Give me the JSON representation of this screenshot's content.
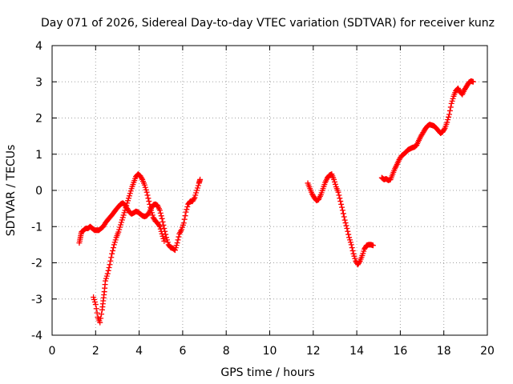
{
  "chart_data": {
    "type": "scatter",
    "title": "Day 071 of 2026, Sidereal Day-to-day VTEC variation (SDTVAR) for receiver kunz",
    "xlabel": "GPS time / hours",
    "ylabel": "SDTVAR / TECUs",
    "xlim": [
      0,
      20
    ],
    "ylim": [
      -4,
      4
    ],
    "x_ticks": [
      "0",
      "2",
      "4",
      "6",
      "8",
      "10",
      "12",
      "14",
      "16",
      "18",
      "20"
    ],
    "y_ticks": [
      "-4",
      "-3",
      "-2",
      "-1",
      "0",
      "1",
      "2",
      "3",
      "4"
    ],
    "grid": true,
    "marker": "+",
    "color": "#ff0000",
    "series": [
      {
        "points": [
          [
            1.25,
            -1.45
          ],
          [
            1.3,
            -1.3
          ],
          [
            1.35,
            -1.15
          ],
          [
            1.45,
            -1.1
          ],
          [
            1.55,
            -1.05
          ],
          [
            1.65,
            -1.05
          ],
          [
            1.75,
            -1.0
          ],
          [
            1.85,
            -1.05
          ],
          [
            1.95,
            -1.1
          ],
          [
            2.05,
            -1.1
          ],
          [
            2.15,
            -1.1
          ],
          [
            2.25,
            -1.05
          ],
          [
            2.35,
            -1.0
          ],
          [
            2.45,
            -0.9
          ],
          [
            2.55,
            -0.82
          ],
          [
            2.65,
            -0.75
          ],
          [
            2.75,
            -0.68
          ],
          [
            2.85,
            -0.6
          ],
          [
            2.95,
            -0.52
          ],
          [
            3.05,
            -0.45
          ],
          [
            3.15,
            -0.38
          ],
          [
            3.25,
            -0.35
          ],
          [
            3.35,
            -0.4
          ],
          [
            3.45,
            -0.5
          ],
          [
            3.55,
            -0.6
          ],
          [
            3.65,
            -0.65
          ],
          [
            3.75,
            -0.62
          ],
          [
            3.85,
            -0.58
          ],
          [
            3.95,
            -0.6
          ],
          [
            4.05,
            -0.65
          ],
          [
            4.15,
            -0.7
          ],
          [
            4.25,
            -0.72
          ],
          [
            4.35,
            -0.7
          ],
          [
            4.45,
            -0.62
          ],
          [
            4.55,
            -0.5
          ],
          [
            4.65,
            -0.4
          ],
          [
            4.75,
            -0.38
          ],
          [
            4.85,
            -0.42
          ],
          [
            4.95,
            -0.55
          ],
          [
            5.05,
            -0.78
          ],
          [
            5.15,
            -1.05
          ],
          [
            5.25,
            -1.3
          ],
          [
            5.35,
            -1.5
          ],
          [
            5.45,
            -1.58
          ],
          [
            5.55,
            -1.6
          ],
          [
            5.65,
            -1.65
          ],
          [
            5.75,
            -1.45
          ],
          [
            5.85,
            -1.2
          ],
          [
            5.95,
            -1.08
          ],
          [
            6.05,
            -0.9
          ],
          [
            6.15,
            -0.6
          ],
          [
            6.25,
            -0.38
          ],
          [
            6.35,
            -0.3
          ],
          [
            6.45,
            -0.3
          ],
          [
            6.55,
            -0.2
          ],
          [
            6.65,
            0.0
          ],
          [
            6.75,
            0.2
          ],
          [
            6.8,
            0.3
          ]
        ]
      },
      {
        "points": [
          [
            1.9,
            -2.95
          ],
          [
            2.0,
            -3.15
          ],
          [
            2.1,
            -3.5
          ],
          [
            2.2,
            -3.65
          ],
          [
            2.3,
            -3.3
          ],
          [
            2.35,
            -3.05
          ],
          [
            2.4,
            -2.8
          ],
          [
            2.45,
            -2.5
          ],
          [
            2.55,
            -2.3
          ],
          [
            2.65,
            -2.05
          ],
          [
            2.75,
            -1.75
          ],
          [
            2.85,
            -1.5
          ],
          [
            2.95,
            -1.3
          ],
          [
            3.05,
            -1.15
          ],
          [
            3.15,
            -0.95
          ],
          [
            3.25,
            -0.75
          ],
          [
            3.35,
            -0.55
          ],
          [
            3.45,
            -0.35
          ],
          [
            3.55,
            -0.15
          ],
          [
            3.65,
            0.05
          ],
          [
            3.75,
            0.22
          ],
          [
            3.85,
            0.38
          ],
          [
            3.95,
            0.45
          ],
          [
            4.05,
            0.4
          ],
          [
            4.15,
            0.3
          ],
          [
            4.25,
            0.15
          ],
          [
            4.35,
            -0.05
          ],
          [
            4.45,
            -0.3
          ],
          [
            4.55,
            -0.55
          ],
          [
            4.65,
            -0.75
          ],
          [
            4.75,
            -0.85
          ],
          [
            4.85,
            -0.9
          ],
          [
            4.95,
            -1.0
          ],
          [
            5.05,
            -1.2
          ],
          [
            5.15,
            -1.4
          ]
        ]
      },
      {
        "points": [
          [
            11.75,
            0.2
          ],
          [
            11.85,
            0.05
          ],
          [
            11.95,
            -0.1
          ],
          [
            12.05,
            -0.2
          ],
          [
            12.15,
            -0.28
          ],
          [
            12.25,
            -0.25
          ],
          [
            12.35,
            -0.12
          ],
          [
            12.45,
            0.05
          ],
          [
            12.55,
            0.22
          ],
          [
            12.65,
            0.35
          ],
          [
            12.75,
            0.42
          ],
          [
            12.85,
            0.45
          ],
          [
            12.95,
            0.3
          ],
          [
            13.05,
            0.1
          ],
          [
            13.15,
            -0.05
          ],
          [
            13.25,
            -0.3
          ],
          [
            13.35,
            -0.55
          ],
          [
            13.45,
            -0.82
          ],
          [
            13.55,
            -1.05
          ],
          [
            13.65,
            -1.3
          ],
          [
            13.75,
            -1.5
          ],
          [
            13.85,
            -1.75
          ],
          [
            13.95,
            -1.95
          ],
          [
            14.05,
            -2.05
          ],
          [
            14.15,
            -1.95
          ],
          [
            14.25,
            -1.8
          ],
          [
            14.35,
            -1.62
          ],
          [
            14.45,
            -1.52
          ],
          [
            14.55,
            -1.5
          ],
          [
            14.65,
            -1.5
          ],
          [
            14.75,
            -1.52
          ]
        ]
      },
      {
        "points": [
          [
            15.15,
            0.35
          ],
          [
            15.25,
            0.3
          ],
          [
            15.35,
            0.32
          ],
          [
            15.45,
            0.28
          ],
          [
            15.55,
            0.3
          ],
          [
            15.65,
            0.45
          ],
          [
            15.75,
            0.6
          ],
          [
            15.85,
            0.72
          ],
          [
            15.95,
            0.85
          ],
          [
            16.05,
            0.95
          ],
          [
            16.15,
            1.0
          ],
          [
            16.25,
            1.05
          ],
          [
            16.35,
            1.12
          ],
          [
            16.45,
            1.15
          ],
          [
            16.55,
            1.18
          ],
          [
            16.65,
            1.2
          ],
          [
            16.75,
            1.25
          ],
          [
            16.85,
            1.38
          ],
          [
            16.95,
            1.5
          ],
          [
            17.05,
            1.6
          ],
          [
            17.15,
            1.7
          ],
          [
            17.25,
            1.78
          ],
          [
            17.35,
            1.82
          ],
          [
            17.45,
            1.8
          ],
          [
            17.55,
            1.78
          ],
          [
            17.65,
            1.72
          ],
          [
            17.75,
            1.65
          ],
          [
            17.85,
            1.58
          ],
          [
            17.95,
            1.62
          ],
          [
            18.05,
            1.72
          ],
          [
            18.15,
            1.88
          ],
          [
            18.25,
            2.1
          ],
          [
            18.35,
            2.4
          ],
          [
            18.45,
            2.6
          ],
          [
            18.55,
            2.75
          ],
          [
            18.65,
            2.82
          ],
          [
            18.75,
            2.72
          ],
          [
            18.85,
            2.65
          ],
          [
            18.95,
            2.78
          ],
          [
            19.05,
            2.88
          ],
          [
            19.15,
            2.98
          ],
          [
            19.25,
            3.02
          ],
          [
            19.35,
            3.0
          ]
        ]
      }
    ]
  }
}
